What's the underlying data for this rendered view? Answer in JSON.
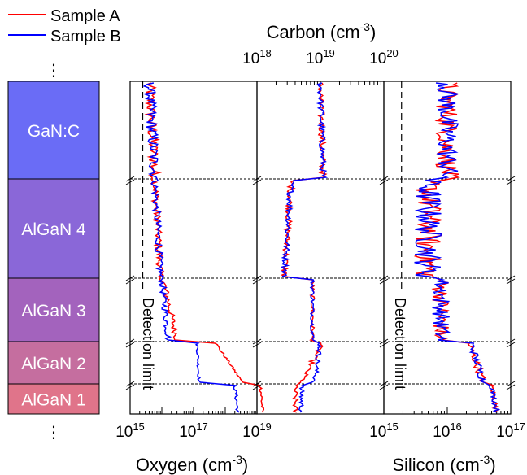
{
  "legend": {
    "position": "top-left",
    "entries": [
      {
        "label": "Sample A",
        "color": "#ff0000"
      },
      {
        "label": "Sample B",
        "color": "#0000ff"
      }
    ],
    "ellipsis": "⋮"
  },
  "stack_labels": {
    "ellipsis_bottom": "⋮"
  },
  "axes": {
    "oxygen": {
      "label": "Oxygen (cm",
      "exponent": "-3",
      "label_end": ")"
    },
    "carbon": {
      "label": "Carbon (cm",
      "exponent": "-3",
      "label_end": ")"
    },
    "silicon": {
      "label": "Silicon (cm",
      "exponent": "-3",
      "label_end": ")"
    }
  },
  "annotations": {
    "detection_limit_oxygen": "Detection limit",
    "detection_limit_silicon": "Detection limit"
  },
  "chart_data": [
    {
      "type": "line",
      "panel": "oxygen",
      "xlabel": "Oxygen (cm-3)",
      "xscale": "log",
      "xlim": [
        1000000000000000.0,
        1e+19
      ],
      "x_ticks": [
        {
          "value": 1000000000000000.0,
          "base": "10",
          "exp": "15"
        },
        {
          "value": 1e+17,
          "base": "10",
          "exp": "17"
        },
        {
          "value": 1e+19,
          "base": "10",
          "exp": "19"
        }
      ],
      "detection_limit": 2500000000000000.0,
      "segments": {
        "GaN:C": {
          "A": [
            4000000000000000.0,
            6000000000000000.0
          ],
          "B": [
            4000000000000000.0,
            6000000000000000.0
          ]
        },
        "AlGaN 4": {
          "A": [
            6000000000000000.0,
            9000000000000000.0
          ],
          "B": [
            6000000000000000.0,
            9000000000000000.0
          ]
        },
        "AlGaN 3": {
          "A": [
            1.1e+16,
            3e+16
          ],
          "B": [
            1e+16,
            1.6e+16
          ]
        },
        "AlGaN 2": {
          "A": [
            5e+17,
            3.5e+18
          ],
          "B": [
            1.3e+17,
            1.5e+17
          ]
        },
        "AlGaN 1": {
          "A": [
            1.3e+19,
            1.5e+19
          ],
          "B": [
            2e+18,
            2.5e+18
          ]
        }
      }
    },
    {
      "type": "line",
      "panel": "carbon",
      "xlabel": "Carbon (cm-3)",
      "xscale": "log",
      "xlim": [
        1e+18,
        1e+20
      ],
      "x_ticks": [
        {
          "value": 1e+18,
          "base": "10",
          "exp": "18"
        },
        {
          "value": 1e+19,
          "base": "10",
          "exp": "19"
        },
        {
          "value": 1e+20,
          "base": "10",
          "exp": "20"
        }
      ],
      "segments": {
        "GaN:C": {
          "A": [
            1e+19,
            1.1e+19
          ],
          "B": [
            1e+19,
            1.1e+19
          ]
        },
        "AlGaN 4": {
          "A": [
            3.5e+18,
            2.7e+18
          ],
          "B": [
            3.5e+18,
            2.7e+18
          ]
        },
        "AlGaN 3": {
          "A": [
            7.5e+18,
            7.5e+18
          ],
          "B": [
            7.5e+18,
            7.5e+18
          ]
        },
        "AlGaN 2": {
          "A": [
            1.05e+19,
            5e+18
          ],
          "B": [
            1e+19,
            8e+18
          ]
        },
        "AlGaN 1": {
          "A": [
            4e+18,
            4e+18
          ],
          "B": [
            5e+18,
            5e+18
          ]
        }
      }
    },
    {
      "type": "line",
      "panel": "silicon",
      "xlabel": "Silicon (cm-3)",
      "xscale": "log",
      "xlim": [
        1000000000000000.0,
        1e+17
      ],
      "x_ticks": [
        {
          "value": 1000000000000000.0,
          "base": "10",
          "exp": "15"
        },
        {
          "value": 1e+16,
          "base": "10",
          "exp": "16"
        },
        {
          "value": 1e+17,
          "base": "10",
          "exp": "17"
        }
      ],
      "detection_limit": 1900000000000000.0,
      "segments": {
        "GaN:C": {
          "A": [
            1e+16,
            1e+16
          ],
          "B": [
            1e+16,
            1e+16
          ]
        },
        "AlGaN 4": {
          "A": [
            5000000000000000.0,
            5000000000000000.0
          ],
          "B": [
            5000000000000000.0,
            5000000000000000.0
          ]
        },
        "AlGaN 3": {
          "A": [
            8000000000000000.0,
            8000000000000000.0
          ],
          "B": [
            8000000000000000.0,
            8000000000000000.0
          ]
        },
        "AlGaN 2": {
          "A": [
            2.2e+16,
            3.7e+16
          ],
          "B": [
            2.4e+16,
            3.7e+16
          ]
        },
        "AlGaN 1": {
          "A": [
            5e+16,
            6e+16
          ],
          "B": [
            5e+16,
            6e+16
          ]
        }
      }
    }
  ],
  "layers": [
    {
      "label": "GaN:C",
      "color": "#6a6cf6"
    },
    {
      "label": "AlGaN 4",
      "color": "#8a67d8"
    },
    {
      "label": "AlGaN 3",
      "color": "#a363bd"
    },
    {
      "label": "AlGaN 2",
      "color": "#c56e9f"
    },
    {
      "label": "AlGaN 1",
      "color": "#e0748a"
    }
  ]
}
